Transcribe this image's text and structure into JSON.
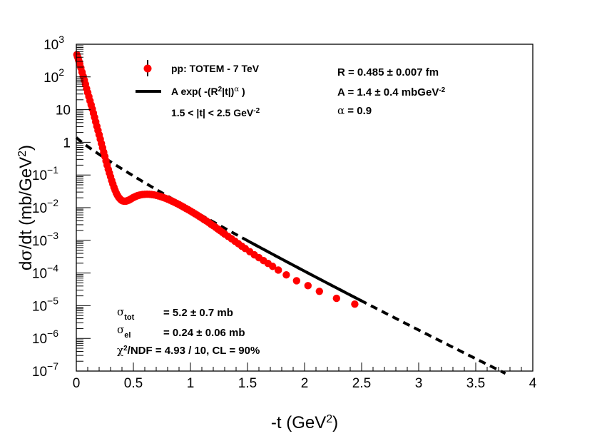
{
  "chart_data": {
    "type": "scatter",
    "xlabel": "-t (GeV2)",
    "ylabel": "dσ/dt (mb/GeV2)",
    "xlim": [
      0,
      4
    ],
    "ylim_log10": [
      -7,
      3
    ],
    "x_ticks": [
      "0",
      "0.5",
      "1",
      "1.5",
      "2",
      "2.5",
      "3",
      "3.5",
      "4"
    ],
    "y_ticks": [
      {
        "base": "10",
        "exp": "3"
      },
      {
        "base": "10",
        "exp": "2"
      },
      {
        "base": "10",
        "exp": ""
      },
      {
        "base": "1",
        "exp": ""
      },
      {
        "base": "10",
        "exp": "−1"
      },
      {
        "base": "10",
        "exp": "−2"
      },
      {
        "base": "10",
        "exp": "−3"
      },
      {
        "base": "10",
        "exp": "−4"
      },
      {
        "base": "10",
        "exp": "−5"
      },
      {
        "base": "10",
        "exp": "−6"
      },
      {
        "base": "10",
        "exp": "−7"
      }
    ],
    "legend": {
      "data_label": "pp: TOTEM - 7 TeV",
      "fit_label": "A exp( -(R2|t|)α )",
      "fit_range": "1.5 < |t| < 2.5 GeV-2"
    },
    "fit_params": {
      "R": "R = 0.485 ± 0.007 fm",
      "A": "A = 1.4 ± 0.4 mbGeV-2",
      "alpha": "α = 0.9"
    },
    "cross_sections": {
      "sigma_tot_label": "σtot",
      "sigma_tot_value": "= 5.2 ± 0.7 mb",
      "sigma_el_label": "σel",
      "sigma_el_value": "= 0.24 ± 0.06 mb",
      "chi2": "χ2/NDF = 4.93 / 10, CL = 90%"
    },
    "series": [
      {
        "name": "pp: TOTEM - 7 TeV",
        "color": "#ff0000",
        "x": [
          0.005,
          0.01,
          0.015,
          0.02,
          0.025,
          0.03,
          0.04,
          0.05,
          0.06,
          0.07,
          0.08,
          0.09,
          0.1,
          0.11,
          0.12,
          0.13,
          0.14,
          0.15,
          0.16,
          0.17,
          0.18,
          0.19,
          0.2,
          0.21,
          0.22,
          0.23,
          0.24,
          0.25,
          0.26,
          0.27,
          0.28,
          0.29,
          0.3,
          0.31,
          0.32,
          0.33,
          0.34,
          0.35,
          0.36,
          0.37,
          0.38,
          0.39,
          0.4,
          0.41,
          0.42,
          0.43,
          0.44,
          0.45,
          0.46,
          0.47,
          0.48,
          0.49,
          0.5,
          0.51,
          0.52,
          0.53,
          0.54,
          0.55,
          0.56,
          0.58,
          0.6,
          0.62,
          0.64,
          0.66,
          0.68,
          0.7,
          0.72,
          0.74,
          0.76,
          0.78,
          0.8,
          0.82,
          0.84,
          0.86,
          0.88,
          0.9,
          0.92,
          0.94,
          0.96,
          0.98,
          1.0,
          1.02,
          1.04,
          1.06,
          1.08,
          1.1,
          1.12,
          1.14,
          1.16,
          1.18,
          1.2,
          1.22,
          1.24,
          1.26,
          1.28,
          1.3,
          1.33,
          1.36,
          1.39,
          1.42,
          1.45,
          1.48,
          1.52,
          1.56,
          1.6,
          1.64,
          1.68,
          1.72,
          1.77,
          1.84,
          1.93,
          2.03,
          2.13,
          2.28,
          2.44
        ],
        "y": [
          480,
          420,
          380,
          330,
          290,
          250,
          190,
          140,
          105,
          80,
          60,
          44,
          33,
          25,
          18.5,
          14,
          10.5,
          7.8,
          5.8,
          4.2,
          3.1,
          2.3,
          1.7,
          1.25,
          0.92,
          0.68,
          0.5,
          0.37,
          0.27,
          0.2,
          0.15,
          0.115,
          0.088,
          0.068,
          0.053,
          0.042,
          0.034,
          0.028,
          0.024,
          0.021,
          0.019,
          0.0175,
          0.0165,
          0.016,
          0.0158,
          0.0158,
          0.016,
          0.0165,
          0.017,
          0.0178,
          0.0185,
          0.0195,
          0.0205,
          0.0212,
          0.022,
          0.0228,
          0.0235,
          0.024,
          0.0245,
          0.0252,
          0.0255,
          0.0258,
          0.0256,
          0.0252,
          0.0246,
          0.0238,
          0.0228,
          0.0218,
          0.0206,
          0.0194,
          0.0182,
          0.017,
          0.0158,
          0.0146,
          0.0135,
          0.0124,
          0.0114,
          0.0104,
          0.0095,
          0.0087,
          0.0079,
          0.0072,
          0.0065,
          0.0059,
          0.0053,
          0.0048,
          0.0043,
          0.0039,
          0.0035,
          0.0031,
          0.0028,
          0.0025,
          0.00222,
          0.00198,
          0.00176,
          0.00156,
          0.00132,
          0.00112,
          0.00094,
          0.00079,
          0.00066,
          0.00056,
          0.00045,
          0.00036,
          0.000295,
          0.00024,
          0.000196,
          0.00016,
          0.000123,
          8.8e-05,
          5.8e-05,
          4.1e-05,
          2.75e-05,
          1.68e-05,
          1.12e-05
        ]
      },
      {
        "name": "A exp( -(R2|t|)α )",
        "type": "line",
        "style": "dashed",
        "color": "#000000",
        "A": 1.4,
        "R_fm": 0.485,
        "alpha": 0.9,
        "x_range": [
          0,
          3.76
        ],
        "solid_range": [
          1.5,
          2.5
        ]
      }
    ]
  }
}
